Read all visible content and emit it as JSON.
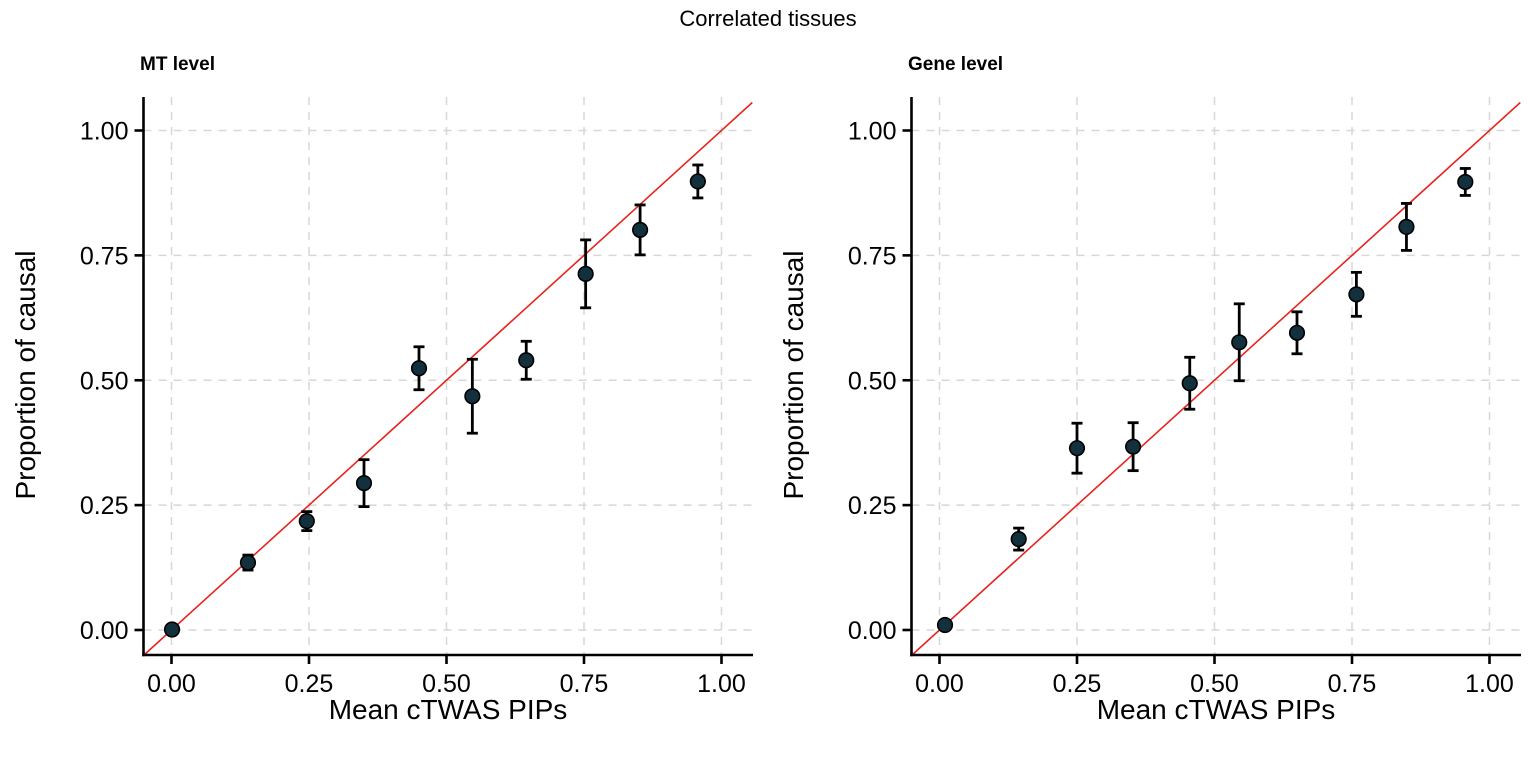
{
  "title": "Correlated tissues",
  "colors": {
    "point_fill": "#13303d",
    "point_stroke": "#000000",
    "identity_line": "#e8231d",
    "grid": "#d7d7d7",
    "axis": "#000000",
    "text": "#000000"
  },
  "chart_data": [
    {
      "type": "scatter",
      "panel_title": "MT level",
      "xlabel": "Mean cTWAS PIPs",
      "ylabel": "Proportion of causal",
      "xlim": [
        -0.052,
        1.056
      ],
      "ylim": [
        -0.05,
        1.067
      ],
      "grid": true,
      "identity_line": true,
      "legend": "none",
      "xticks": [
        0,
        0.25,
        0.5,
        0.75,
        1
      ],
      "yticks": [
        0,
        0.25,
        0.5,
        0.75,
        1
      ],
      "xtick_labels": [
        "0.00",
        "0.25",
        "0.50",
        "0.75",
        "1.00"
      ],
      "ytick_labels": [
        "0.00",
        "0.25",
        "0.50",
        "0.75",
        "1.00"
      ],
      "points": {
        "x": [
          0.001,
          0.139,
          0.246,
          0.35,
          0.45,
          0.547,
          0.645,
          0.753,
          0.852,
          0.957
        ],
        "y": [
          0.001,
          0.135,
          0.218,
          0.294,
          0.524,
          0.468,
          0.54,
          0.713,
          0.801,
          0.898
        ],
        "yerr": [
          0.006,
          0.015,
          0.019,
          0.047,
          0.043,
          0.074,
          0.038,
          0.068,
          0.05,
          0.033
        ]
      }
    },
    {
      "type": "scatter",
      "panel_title": "Gene level",
      "xlabel": "Mean cTWAS PIPs",
      "ylabel": "Proportion of causal",
      "xlim": [
        -0.052,
        1.056
      ],
      "ylim": [
        -0.05,
        1.067
      ],
      "grid": true,
      "identity_line": true,
      "legend": "none",
      "xticks": [
        0,
        0.25,
        0.5,
        0.75,
        1
      ],
      "yticks": [
        0,
        0.25,
        0.5,
        0.75,
        1
      ],
      "xtick_labels": [
        "0.00",
        "0.25",
        "0.50",
        "0.75",
        "1.00"
      ],
      "ytick_labels": [
        "0.00",
        "0.25",
        "0.50",
        "0.75",
        "1.00"
      ],
      "points": {
        "x": [
          0.01,
          0.144,
          0.25,
          0.352,
          0.455,
          0.545,
          0.65,
          0.758,
          0.849,
          0.956
        ],
        "y": [
          0.01,
          0.182,
          0.364,
          0.367,
          0.494,
          0.576,
          0.595,
          0.672,
          0.807,
          0.897
        ],
        "yerr": [
          0.006,
          0.022,
          0.05,
          0.048,
          0.052,
          0.077,
          0.042,
          0.044,
          0.047,
          0.027
        ]
      }
    }
  ]
}
